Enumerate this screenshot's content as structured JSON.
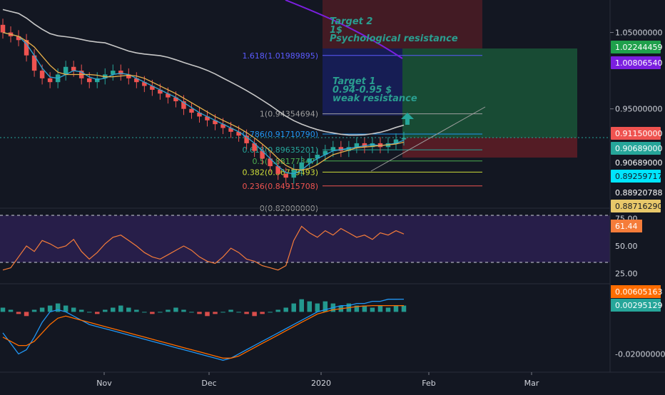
{
  "colors": {
    "background": "#131722",
    "up_candle": "#26a69a",
    "down_candle": "#ef5350",
    "ma_long": "#c8c8c8",
    "ma_purple": "#7b1fe0",
    "ema_fast": "#2ea7d6",
    "ema_slow": "#e8b04a",
    "rsi_line": "#f57c3a",
    "rsi_band": "#2a1f4e",
    "macd_line": "#2196f3",
    "signal_line": "#ff6d00",
    "target_green": "#1b5e3b",
    "target_red": "#6b1f27"
  },
  "chart_data": [
    {
      "type": "candlestick",
      "panel": "price",
      "y_axis_ticks": [
        "1.05000000",
        "0.95000000"
      ],
      "price_tags": [
        {
          "label": "1.02244459",
          "value": 1.02244459,
          "color": "#1fa04b"
        },
        {
          "label": "1.00806540",
          "value": 1.0080654,
          "color": "#7b1fe0"
        },
        {
          "label": "0.91150000",
          "value": 0.9115,
          "color": "#ef5350"
        },
        {
          "label": "0.90689000",
          "value": 0.90689,
          "color": "#26a69a"
        },
        {
          "label": "0.90689000",
          "value": 0.90689,
          "color": "#ffffff"
        },
        {
          "label": "0.89259717",
          "value": 0.89259717,
          "color": "#00e5ff"
        },
        {
          "label": "0.88920788",
          "value": 0.88920788,
          "color": "#ffffff"
        },
        {
          "label": "0.88716290",
          "value": 0.8871629,
          "color": "#e8c86a"
        }
      ],
      "fib_levels": [
        {
          "label": "1.618(1.01989895)",
          "value": 1.01989895,
          "color": "#5b5bff"
        },
        {
          "label": "1(0.94354694)",
          "value": 0.94354694,
          "color": "#9e9e9e"
        },
        {
          "label": "0.786(0.91710790)",
          "value": 0.9171079,
          "color": "#2196f3"
        },
        {
          "label": "0.618(0.89635201)",
          "value": 0.89635201,
          "color": "#26a69a"
        },
        {
          "label": "0.5(0.88177347)",
          "value": 0.88177347,
          "color": "#4caf50"
        },
        {
          "label": "0.382(0.86719493)",
          "value": 0.86719493,
          "color": "#cddc39"
        },
        {
          "label": "0.236(0.84915708)",
          "value": 0.84915708,
          "color": "#ef5350"
        },
        {
          "label": "0(0.82000000)",
          "value": 0.82,
          "color": "#9e9e9e"
        }
      ],
      "annotations": [
        {
          "lines": [
            "Target 2",
            "1$",
            "Psychological resistance"
          ]
        },
        {
          "lines": [
            "Target 1",
            "0.94-0.95 $",
            "weak resistance"
          ]
        }
      ],
      "series_close": [
        1.05,
        1.045,
        1.04,
        1.02,
        1.0,
        0.99,
        0.985,
        0.995,
        1.005,
        1.0,
        0.99,
        0.985,
        0.99,
        0.995,
        1.0,
        0.995,
        0.99,
        0.985,
        0.98,
        0.975,
        0.97,
        0.965,
        0.96,
        0.95,
        0.945,
        0.94,
        0.935,
        0.93,
        0.925,
        0.92,
        0.915,
        0.905,
        0.895,
        0.885,
        0.875,
        0.865,
        0.86,
        0.87,
        0.88,
        0.885,
        0.89,
        0.895,
        0.9,
        0.895,
        0.9,
        0.905,
        0.9,
        0.905,
        0.9,
        0.905,
        0.91,
        0.912
      ]
    },
    {
      "type": "line",
      "panel": "rsi",
      "y_axis_ticks": [
        "75.00",
        "50.00",
        "25.00"
      ],
      "current_label": "61.44",
      "band": [
        30,
        70
      ],
      "values": [
        28,
        30,
        40,
        50,
        45,
        55,
        52,
        48,
        50,
        56,
        45,
        38,
        44,
        52,
        58,
        60,
        55,
        50,
        44,
        40,
        38,
        42,
        46,
        50,
        46,
        40,
        36,
        34,
        40,
        48,
        44,
        38,
        36,
        32,
        30,
        28,
        32,
        55,
        68,
        62,
        58,
        64,
        60,
        66,
        62,
        58,
        60,
        56,
        62,
        60,
        64,
        61
      ]
    },
    {
      "type": "bar",
      "panel": "macd",
      "y_axis_ticks": [
        "-0.02000000"
      ],
      "current_labels": [
        "0.00605163",
        "0.00295129"
      ],
      "histogram": [
        0.002,
        0.001,
        -0.001,
        -0.002,
        0.001,
        0.002,
        0.003,
        0.004,
        0.003,
        0.002,
        0.001,
        0.0,
        -0.001,
        0.001,
        0.002,
        0.003,
        0.002,
        0.001,
        0.0,
        -0.001,
        0.0,
        0.001,
        0.002,
        0.001,
        0.0,
        -0.001,
        -0.002,
        -0.001,
        0.0,
        0.001,
        0.0,
        -0.001,
        -0.002,
        -0.001,
        0.0,
        0.001,
        0.002,
        0.004,
        0.006,
        0.005,
        0.004,
        0.005,
        0.004,
        0.003,
        0.004,
        0.003,
        0.003,
        0.002,
        0.003,
        0.002,
        0.003,
        0.003
      ],
      "macd": [
        -0.01,
        -0.015,
        -0.02,
        -0.018,
        -0.012,
        -0.005,
        0.0,
        0.001,
        0.0,
        -0.002,
        -0.004,
        -0.006,
        -0.007,
        -0.008,
        -0.009,
        -0.01,
        -0.011,
        -0.012,
        -0.013,
        -0.014,
        -0.015,
        -0.016,
        -0.017,
        -0.018,
        -0.019,
        -0.02,
        -0.021,
        -0.022,
        -0.023,
        -0.022,
        -0.02,
        -0.018,
        -0.016,
        -0.014,
        -0.012,
        -0.01,
        -0.008,
        -0.006,
        -0.004,
        -0.002,
        0.0,
        0.001,
        0.002,
        0.003,
        0.003,
        0.004,
        0.004,
        0.005,
        0.005,
        0.006,
        0.006,
        0.00605
      ],
      "signal": [
        -0.012,
        -0.014,
        -0.016,
        -0.016,
        -0.014,
        -0.01,
        -0.006,
        -0.003,
        -0.002,
        -0.003,
        -0.004,
        -0.005,
        -0.006,
        -0.007,
        -0.008,
        -0.009,
        -0.01,
        -0.011,
        -0.012,
        -0.013,
        -0.014,
        -0.015,
        -0.016,
        -0.017,
        -0.018,
        -0.019,
        -0.02,
        -0.021,
        -0.022,
        -0.022,
        -0.021,
        -0.019,
        -0.017,
        -0.015,
        -0.013,
        -0.011,
        -0.009,
        -0.007,
        -0.005,
        -0.003,
        -0.001,
        0.0,
        0.001,
        0.0015,
        0.002,
        0.0025,
        0.0028,
        0.003,
        0.003,
        0.003,
        0.003,
        0.00295
      ]
    }
  ],
  "x_axis": {
    "ticks": [
      "Nov",
      "Dec",
      "2020",
      "Feb",
      "Mar"
    ]
  }
}
